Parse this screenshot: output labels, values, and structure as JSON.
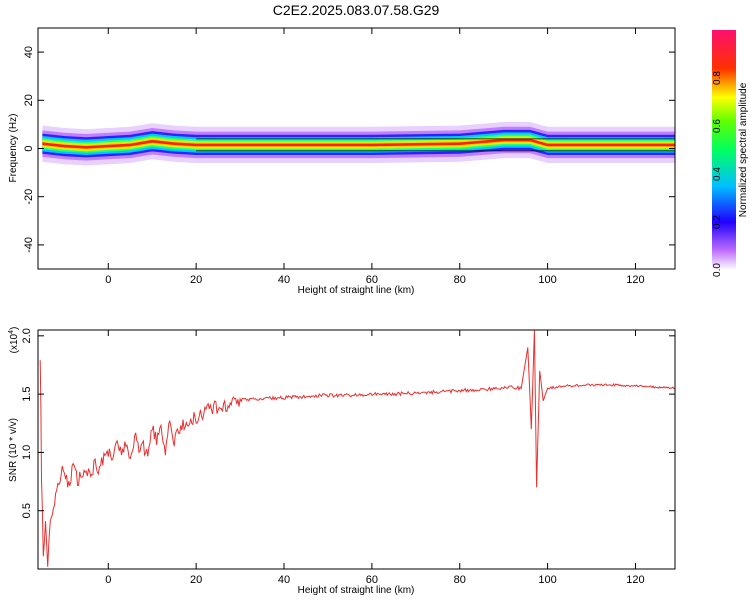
{
  "title": "C2E2.2025.083.07.58.G29",
  "chart_data": [
    {
      "type": "heatmap",
      "xlabel": "Height of straight line (km)",
      "ylabel": "Frequency (Hz)",
      "xlim": [
        -16,
        129
      ],
      "ylim": [
        -50,
        50
      ],
      "x_ticks": [
        "0",
        "20",
        "40",
        "60",
        "80",
        "100",
        "120"
      ],
      "y_ticks": [
        "-40",
        "-20",
        "0",
        "20",
        "40"
      ],
      "colorbar": {
        "label": "Normalized spectral amplitude",
        "ticks": [
          "0.0",
          "0.2",
          "0.4",
          "0.6",
          "0.8"
        ],
        "range": [
          0,
          1
        ],
        "scale": [
          "#ffffff",
          "#b000ff",
          "#0000ff",
          "#00ffff",
          "#00ff00",
          "#ffff00",
          "#ff0000",
          "#ff0080"
        ]
      },
      "ridge": {
        "description_points_x": [
          -15,
          -10,
          -5,
          0,
          5,
          10,
          15,
          20,
          40,
          60,
          80,
          90,
          96,
          100,
          110,
          120,
          129
        ],
        "center_freq_hz": [
          2,
          1,
          0.5,
          1,
          1.5,
          3,
          2,
          1.5,
          1.5,
          1.5,
          2,
          3.5,
          3.5,
          1.5,
          1.5,
          1.5,
          1.5
        ]
      }
    },
    {
      "type": "line",
      "xlabel": "Height of straight line (km)",
      "ylabel": "SNR (10 * v/v)",
      "scale_label": "(x10",
      "scale_exp": "4",
      "xlim": [
        -16,
        129
      ],
      "ylim": [
        0,
        2.05
      ],
      "x_ticks": [
        "0",
        "20",
        "40",
        "60",
        "80",
        "100",
        "120"
      ],
      "y_ticks": [
        "0.5",
        "1.0",
        "1.5",
        "2.0"
      ],
      "line_color": "#e83030",
      "series": [
        {
          "x": [
            -15.5,
            -15.2,
            -14.8,
            -14.3,
            -13.8,
            -13.2,
            -12.5,
            -12,
            -11,
            -10,
            -9,
            -8,
            -7,
            -6,
            -5,
            -4,
            -3,
            -2,
            -1,
            0,
            1,
            2,
            3,
            4,
            5,
            6,
            7,
            8,
            9,
            10,
            11,
            12,
            13,
            14,
            15,
            16,
            17,
            18,
            19,
            20,
            22,
            24,
            26,
            28,
            30,
            35,
            40,
            45,
            50,
            55,
            60,
            65,
            70,
            75,
            80,
            85,
            90,
            92,
            94,
            95.5,
            96.3,
            97,
            97.5,
            98.2,
            99,
            100,
            102,
            104,
            106,
            110,
            115,
            120,
            125,
            129
          ],
          "y": [
            1.85,
            0.8,
            0.1,
            0.45,
            0.05,
            0.4,
            0.5,
            0.6,
            0.8,
            0.85,
            0.7,
            0.9,
            0.75,
            0.8,
            0.85,
            0.8,
            0.9,
            0.85,
            0.95,
            1.0,
            0.9,
            1.1,
            1.0,
            1.05,
            0.95,
            1.15,
            1.0,
            1.05,
            0.95,
            1.2,
            1.1,
            1.25,
            1.0,
            1.3,
            1.1,
            1.2,
            1.25,
            1.2,
            1.3,
            1.3,
            1.35,
            1.38,
            1.4,
            1.42,
            1.45,
            1.46,
            1.47,
            1.48,
            1.49,
            1.49,
            1.5,
            1.5,
            1.51,
            1.52,
            1.53,
            1.54,
            1.55,
            1.56,
            1.55,
            1.9,
            1.2,
            2.05,
            0.7,
            1.7,
            1.45,
            1.55,
            1.56,
            1.57,
            1.57,
            1.58,
            1.58,
            1.57,
            1.56,
            1.55
          ]
        }
      ]
    }
  ]
}
